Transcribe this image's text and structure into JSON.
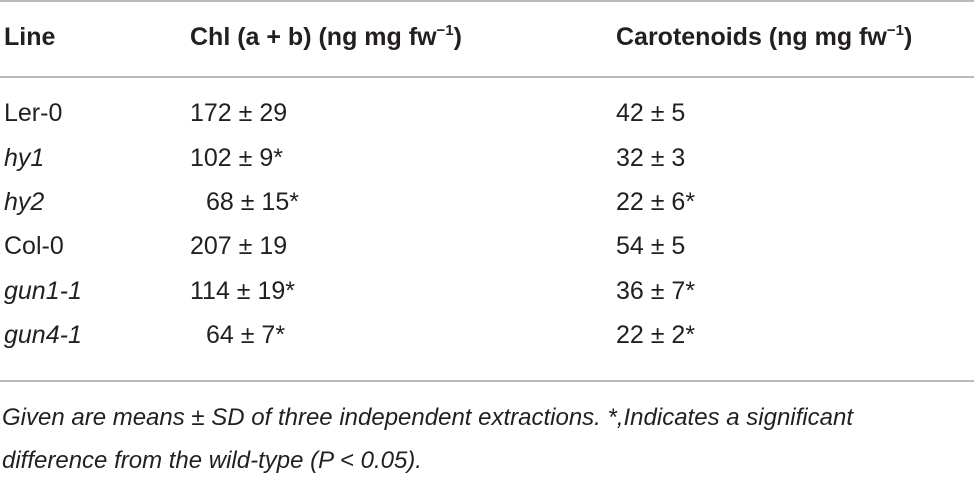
{
  "header": {
    "line": "Line",
    "chl_main": "Chl (a + b) (ng mg fw",
    "chl_sup": "−1",
    "chl_close": ")",
    "car_main": "Carotenoids (ng mg fw",
    "car_sup": "−1",
    "car_close": ")"
  },
  "rows": [
    {
      "line": "Ler-0",
      "chl": "172 ± 29",
      "car": "42 ± 5",
      "italic": false
    },
    {
      "line": "hy1",
      "chl": "102 ± 9*",
      "car": "32 ± 3",
      "italic": true
    },
    {
      "line": "hy2",
      "chl": "68 ± 15*",
      "car": "22 ± 6*",
      "italic": true
    },
    {
      "line": "Col-0",
      "chl": "207 ± 19",
      "car": "54 ± 5",
      "italic": false
    },
    {
      "line": "gun1-1",
      "chl": "114 ± 19*",
      "car": "36 ± 7*",
      "italic": true
    },
    {
      "line": "gun4-1",
      "chl": "64 ± 7*",
      "car": "22 ± 2*",
      "italic": true
    }
  ],
  "footnote": {
    "line1": "Given are means ± SD of three independent extractions.  *,Indicates a significant",
    "line2": "difference from the wild-type (P < 0.05)."
  }
}
